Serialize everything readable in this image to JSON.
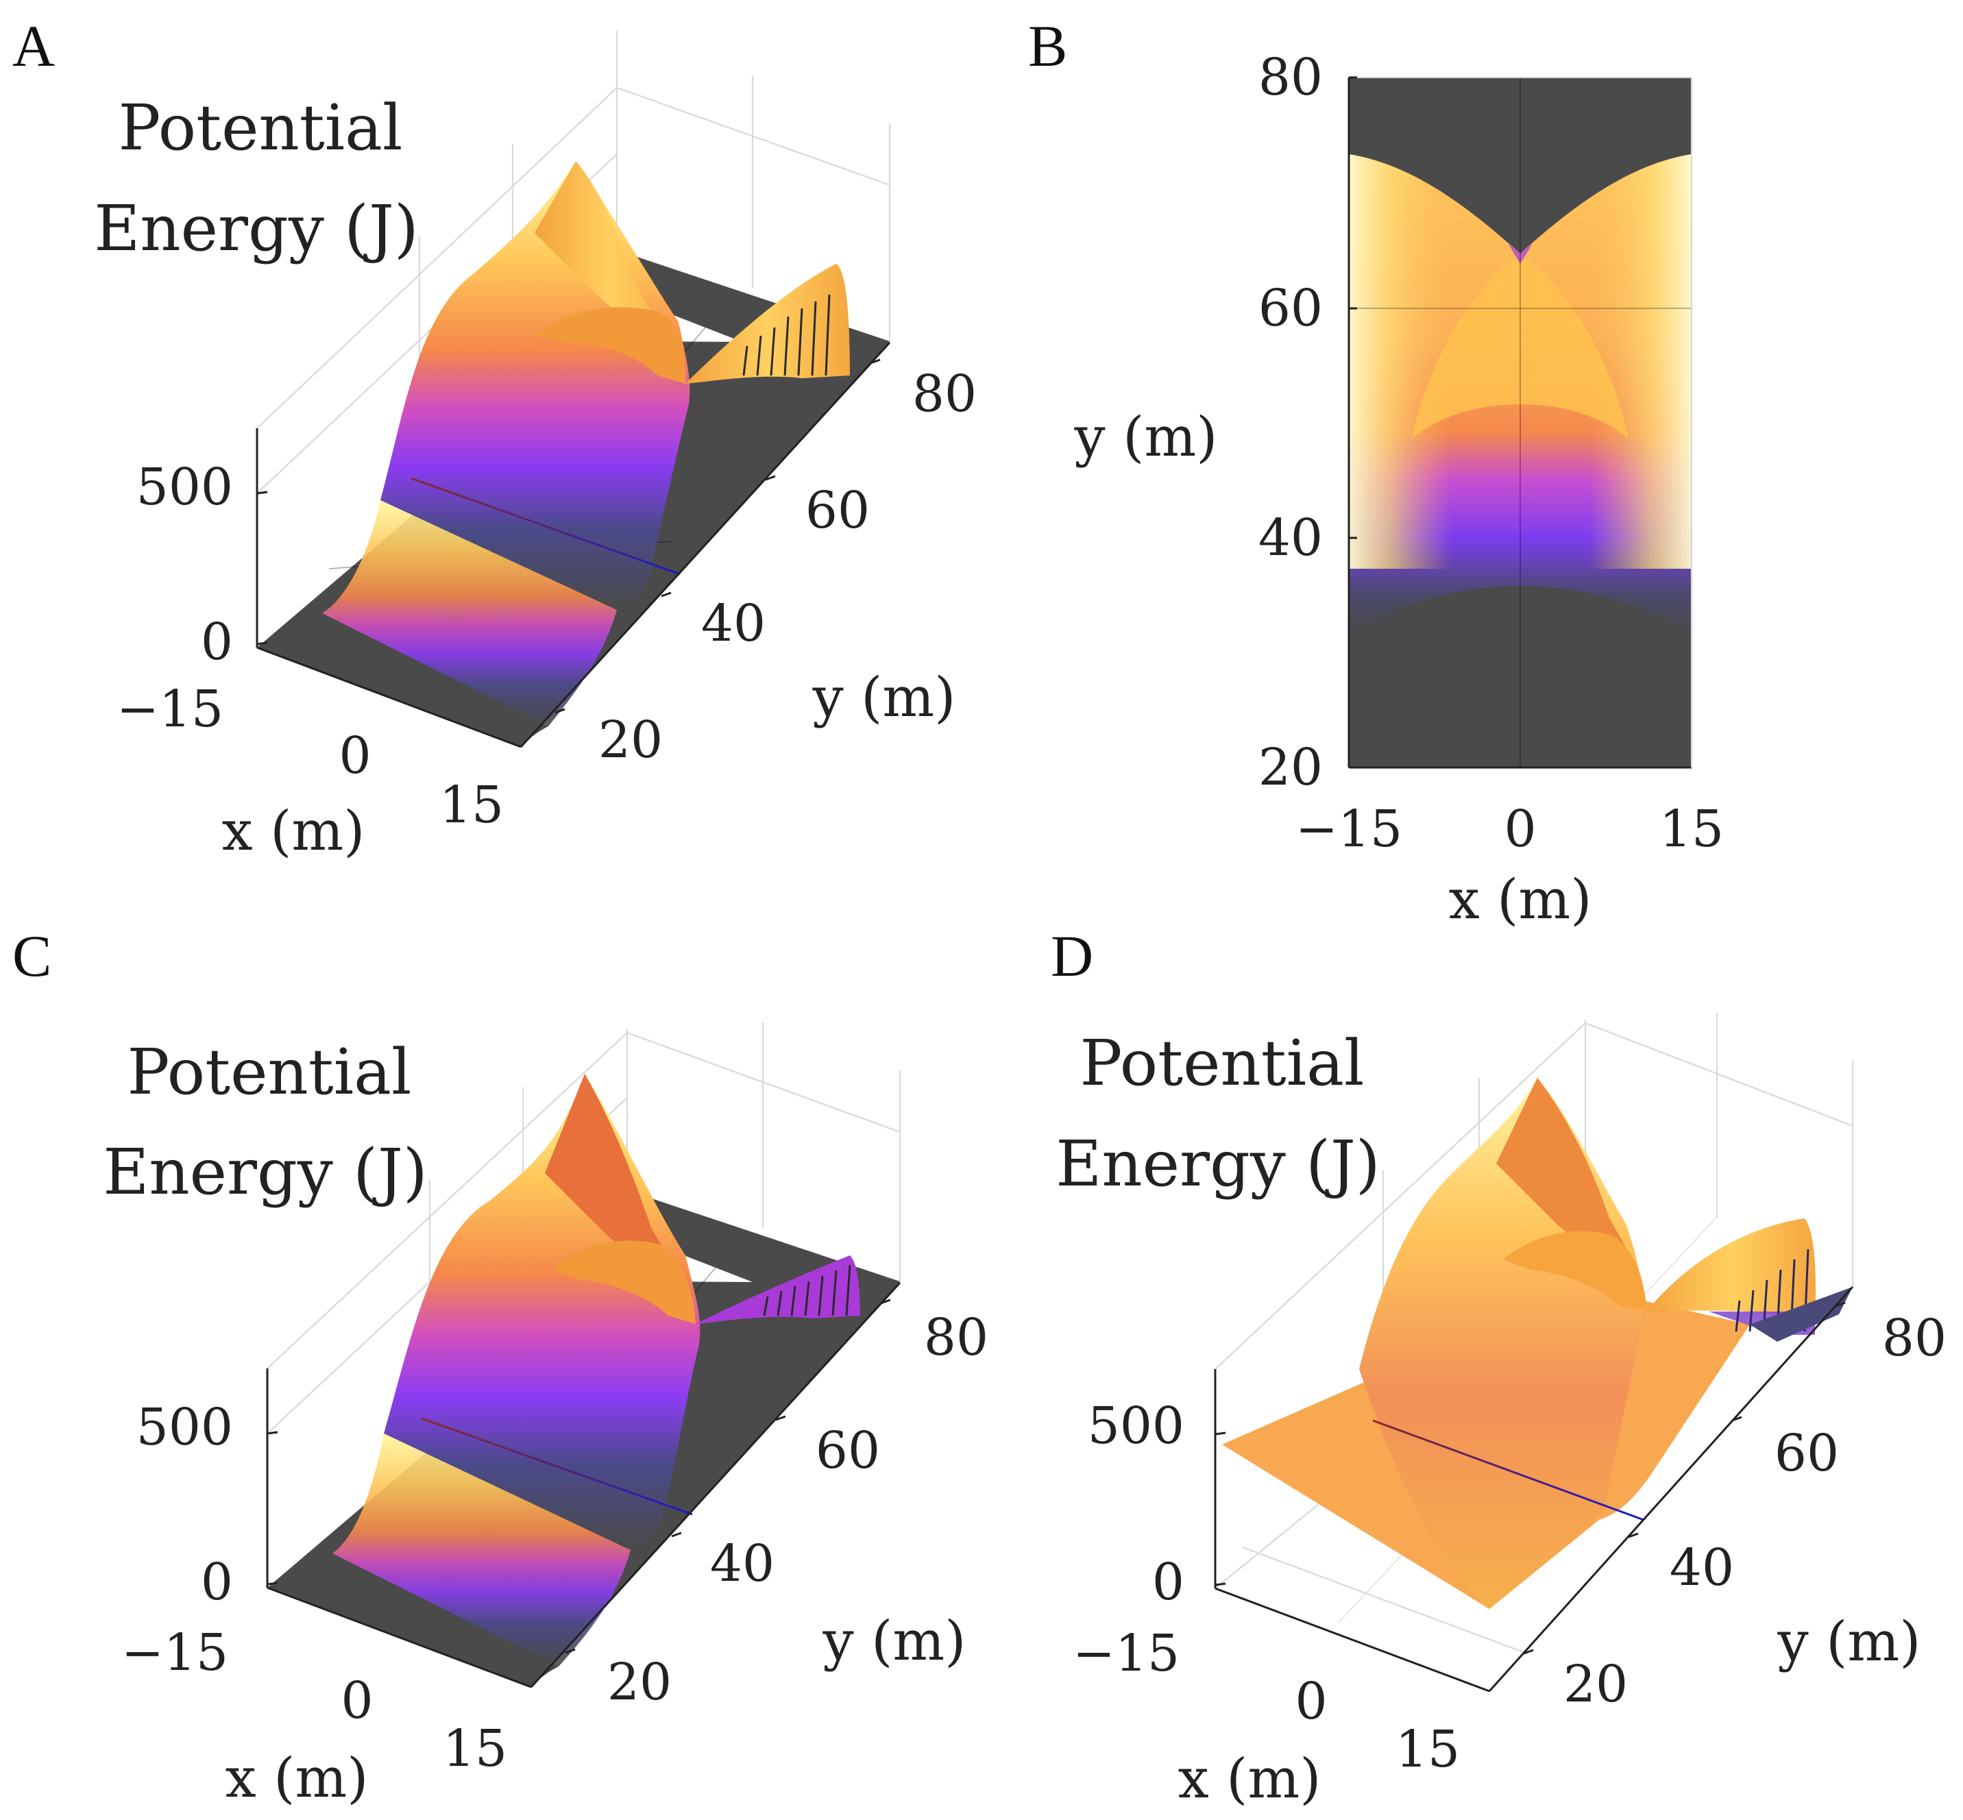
{
  "panels": [
    {
      "letter": "A",
      "view": "surface-3d",
      "z_title_line1": "Potential",
      "z_title_line2": "Energy (J)",
      "x_label": "x (m)",
      "y_label": "y (m)",
      "x_ticks": [
        "−15",
        "0",
        "15"
      ],
      "y_ticks": [
        "20",
        "40",
        "60",
        "80"
      ],
      "z_ticks": [
        "0",
        "500"
      ],
      "colormap": "dark-gray-purple-orange-yellow",
      "zero_region_color": "#4a4a4a",
      "line_y": 40,
      "line_colors": [
        "#8b2a2a",
        "#1a1acc"
      ]
    },
    {
      "letter": "B",
      "view": "top-down",
      "x_label": "x (m)",
      "y_label": "y (m)",
      "x_ticks": [
        "−15",
        "0",
        "15"
      ],
      "y_ticks": [
        "20",
        "40",
        "60",
        "80"
      ],
      "colormap": "dark-gray-purple-orange-yellow",
      "zero_region_color": "#4a4a4a",
      "line_y": 40
    },
    {
      "letter": "C",
      "view": "surface-3d",
      "z_title_line1": "Potential",
      "z_title_line2": "Energy (J)",
      "x_label": "x (m)",
      "y_label": "y (m)",
      "x_ticks": [
        "−15",
        "0",
        "15"
      ],
      "y_ticks": [
        "20",
        "40",
        "60",
        "80"
      ],
      "z_ticks": [
        "0",
        "500"
      ],
      "colormap": "dark-gray-purple-orange-yellow",
      "zero_region_color": "#4a4a4a",
      "line_y": 40
    },
    {
      "letter": "D",
      "view": "surface-3d-raised",
      "z_title_line1": "Potential",
      "z_title_line2": "Energy (J)",
      "x_label": "x (m)",
      "y_label": "y (m)",
      "x_ticks": [
        "−15",
        "0",
        "15"
      ],
      "y_ticks": [
        "20",
        "40",
        "60",
        "80"
      ],
      "z_ticks": [
        "0",
        "500"
      ],
      "colormap": "orange-yellow",
      "plateau_color": "#f5a55a",
      "line_y": 40
    }
  ],
  "chart_data": [
    {
      "type": "surface",
      "panel": "A",
      "x_range": [
        -15,
        15
      ],
      "y_range": [
        15,
        80
      ],
      "z_range": [
        0,
        700
      ],
      "features": {
        "flat_zero_until_y": 35,
        "rise_to_y": 45,
        "edge_peak_y": 73,
        "center_dip_y": 65,
        "peak_value_approx": 700
      },
      "marked_line_y": 40
    },
    {
      "type": "heatmap",
      "panel": "B",
      "x_range": [
        -15,
        15
      ],
      "y_range": [
        20,
        80
      ],
      "features": {
        "zero_below_y": 32,
        "zero_above_center_y": 65,
        "zero_above_edge_y": 74,
        "center_cusp_y": 65
      },
      "marked_line_y": 40
    },
    {
      "type": "surface",
      "panel": "C",
      "x_range": [
        -15,
        15
      ],
      "y_range": [
        15,
        80
      ],
      "z_range": [
        0,
        700
      ],
      "marked_line_y": 40
    },
    {
      "type": "surface",
      "panel": "D",
      "x_range": [
        -15,
        15
      ],
      "y_range": [
        15,
        80
      ],
      "z_range": [
        0,
        700
      ],
      "features": {
        "baseline_plateau_value_approx": 500
      },
      "marked_line_y": 40
    }
  ],
  "colors": {
    "dark": "#4a4a4a",
    "purple": "#8a3cf2",
    "orange": "#f59a40",
    "yellow": "#fff07a",
    "line_red": "#8b2a2a",
    "line_blue": "#1a1acc"
  }
}
